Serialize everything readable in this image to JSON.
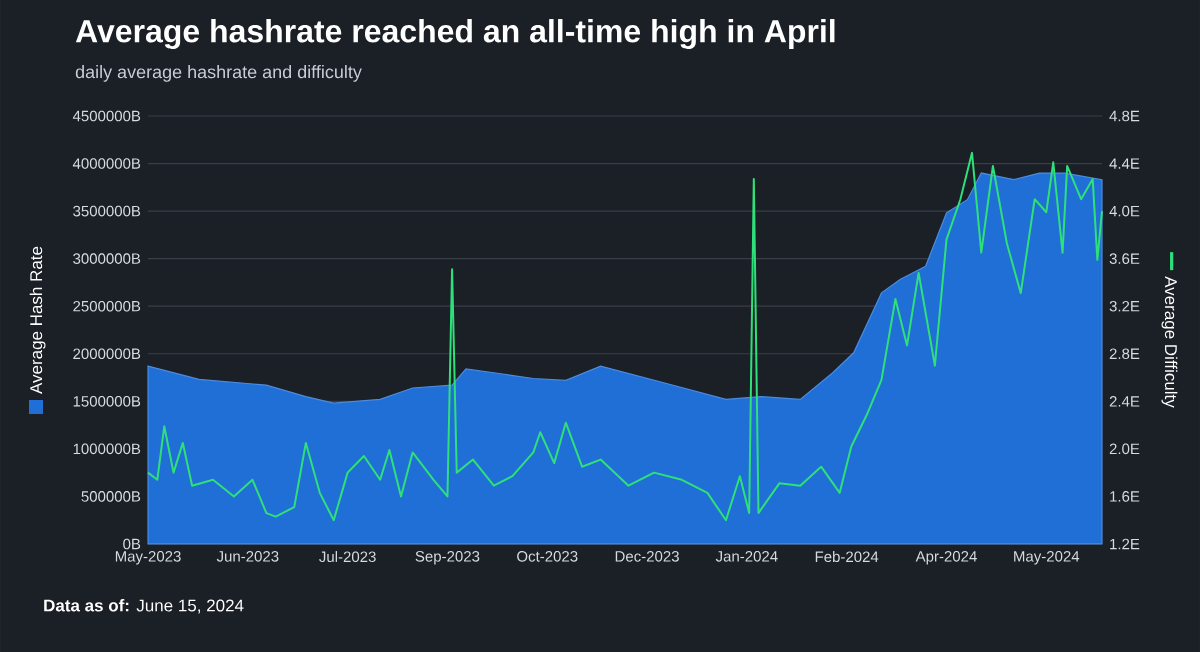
{
  "chart_data": {
    "type": "area",
    "title": "Average hashrate reached an all-time high in April",
    "subtitle": "daily average hashrate and difficulty",
    "ylabel": "Average Hash Rate",
    "y2label": "Average Difficulty",
    "annotations": [
      "**Data as of:** June 15, 2024"
    ],
    "grid": "y",
    "xlim": [
      "2023-05-01",
      "2024-06-15"
    ],
    "xticks": [
      {
        "value": "2023-05-01",
        "label": "May-2023"
      },
      {
        "value": "2023-06-13",
        "label": "Jun-2023"
      },
      {
        "value": "2023-07-26",
        "label": "Jul-2023"
      },
      {
        "value": "2023-09-07",
        "label": "Sep-2023"
      },
      {
        "value": "2023-10-20",
        "label": "Oct-2023"
      },
      {
        "value": "2023-12-02",
        "label": "Dec-2023"
      },
      {
        "value": "2024-01-14",
        "label": "Jan-2024"
      },
      {
        "value": "2024-02-26",
        "label": "Feb-2024"
      },
      {
        "value": "2024-04-09",
        "label": "Apr-2024"
      },
      {
        "value": "2024-05-22",
        "label": "May-2024"
      }
    ],
    "ylim": [
      0,
      4500000
    ],
    "yticks": [
      {
        "value": 0,
        "label": "0B"
      },
      {
        "value": 500000,
        "label": "500000B"
      },
      {
        "value": 1000000,
        "label": "1000000B"
      },
      {
        "value": 1500000,
        "label": "1500000B"
      },
      {
        "value": 2000000,
        "label": "2000000B"
      },
      {
        "value": 2500000,
        "label": "2500000B"
      },
      {
        "value": 3000000,
        "label": "3000000B"
      },
      {
        "value": 3500000,
        "label": "3500000B"
      },
      {
        "value": 4000000,
        "label": "4000000B"
      },
      {
        "value": 4500000,
        "label": "4500000B"
      }
    ],
    "y2lim": [
      1.2,
      4.8
    ],
    "y2ticks": [
      {
        "value": 1.2,
        "label": "1.2E"
      },
      {
        "value": 1.6,
        "label": "1.6E"
      },
      {
        "value": 2.0,
        "label": "2.0E"
      },
      {
        "value": 2.4,
        "label": "2.4E"
      },
      {
        "value": 2.8,
        "label": "2.8E"
      },
      {
        "value": 3.2,
        "label": "3.2E"
      },
      {
        "value": 3.6,
        "label": "3.6E"
      },
      {
        "value": 4.0,
        "label": "4.0E"
      },
      {
        "value": 4.4,
        "label": "4.4E"
      },
      {
        "value": 4.8,
        "label": "4.8E"
      }
    ],
    "series": [
      {
        "axis": "y",
        "color": "#1f6fd6",
        "x": [
          "2023-05-01",
          "2023-05-23",
          "2023-06-21",
          "2023-07-08",
          "2023-07-20",
          "2023-08-09",
          "2023-08-23",
          "2023-09-09",
          "2023-09-15",
          "2023-09-30",
          "2023-10-14",
          "2023-10-28",
          "2023-11-12",
          "2023-12-10",
          "2024-01-05",
          "2024-01-20",
          "2024-02-06",
          "2024-02-20",
          "2024-02-29",
          "2024-03-12",
          "2024-03-20",
          "2024-03-31",
          "2024-04-09",
          "2024-04-18",
          "2024-04-24",
          "2024-05-08",
          "2024-05-19",
          "2024-05-30",
          "2024-06-15"
        ],
        "values": [
          1870000,
          1730000,
          1670000,
          1550000,
          1480000,
          1520000,
          1640000,
          1670000,
          1840000,
          1790000,
          1740000,
          1720000,
          1870000,
          1690000,
          1520000,
          1550000,
          1520000,
          1800000,
          2010000,
          2640000,
          2780000,
          2920000,
          3480000,
          3620000,
          3900000,
          3830000,
          3900000,
          3900000,
          3830000
        ]
      },
      {
        "type": "line",
        "axis": "y2",
        "color": "#2fe07a",
        "x": [
          "2023-05-01",
          "2023-05-05",
          "2023-05-08",
          "2023-05-12",
          "2023-05-16",
          "2023-05-20",
          "2023-05-29",
          "2023-06-07",
          "2023-06-15",
          "2023-06-21",
          "2023-06-25",
          "2023-07-03",
          "2023-07-08",
          "2023-07-14",
          "2023-07-20",
          "2023-07-26",
          "2023-08-02",
          "2023-08-09",
          "2023-08-13",
          "2023-08-18",
          "2023-08-23",
          "2023-09-01",
          "2023-09-07",
          "2023-09-09",
          "2023-09-11",
          "2023-09-18",
          "2023-09-27",
          "2023-10-05",
          "2023-10-14",
          "2023-10-17",
          "2023-10-23",
          "2023-10-28",
          "2023-11-04",
          "2023-11-12",
          "2023-11-24",
          "2023-12-05",
          "2023-12-17",
          "2023-12-28",
          "2024-01-05",
          "2024-01-11",
          "2024-01-15",
          "2024-01-17",
          "2024-01-19",
          "2024-01-28",
          "2024-02-06",
          "2024-02-15",
          "2024-02-23",
          "2024-02-28",
          "2024-03-06",
          "2024-03-12",
          "2024-03-18",
          "2024-03-23",
          "2024-03-28",
          "2024-04-04",
          "2024-04-09",
          "2024-04-15",
          "2024-04-20",
          "2024-04-24",
          "2024-04-29",
          "2024-05-05",
          "2024-05-11",
          "2024-05-17",
          "2024-05-22",
          "2024-05-25",
          "2024-05-29",
          "2024-05-31",
          "2024-06-06",
          "2024-06-11",
          "2024-06-13",
          "2024-06-15"
        ],
        "values": [
          1.8,
          1.74,
          2.19,
          1.8,
          2.05,
          1.69,
          1.74,
          1.6,
          1.74,
          1.46,
          1.43,
          1.51,
          2.05,
          1.63,
          1.4,
          1.8,
          1.94,
          1.74,
          1.99,
          1.6,
          1.97,
          1.74,
          1.6,
          3.51,
          1.8,
          1.91,
          1.69,
          1.77,
          1.97,
          2.14,
          1.88,
          2.22,
          1.85,
          1.91,
          1.69,
          1.8,
          1.74,
          1.63,
          1.4,
          1.77,
          1.46,
          4.27,
          1.46,
          1.71,
          1.69,
          1.85,
          1.63,
          2.02,
          2.3,
          2.58,
          3.26,
          2.87,
          3.48,
          2.7,
          3.76,
          4.1,
          4.49,
          3.65,
          4.38,
          3.73,
          3.31,
          4.1,
          3.99,
          4.41,
          3.65,
          4.38,
          4.1,
          4.27,
          3.59,
          4.0
        ]
      }
    ]
  }
}
